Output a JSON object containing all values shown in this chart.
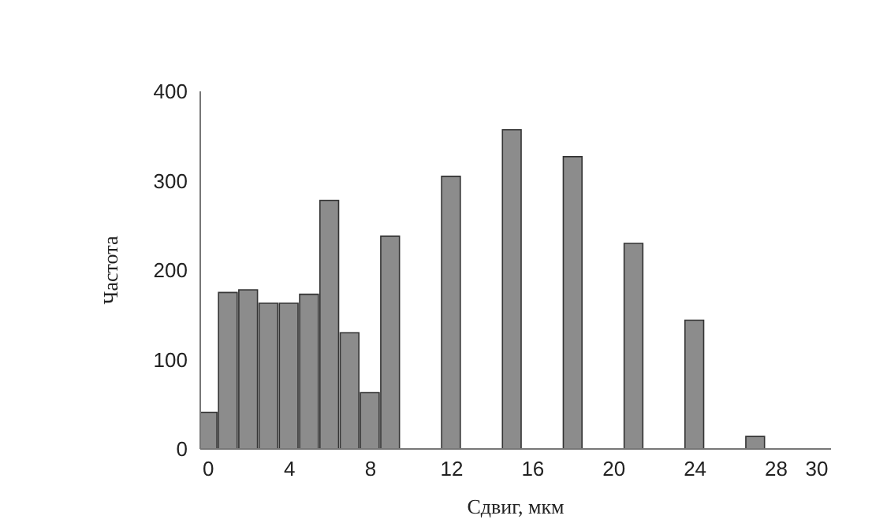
{
  "chart_data": {
    "type": "bar",
    "xlabel": "Сдвиг, мкм",
    "ylabel": "Частота",
    "x": [
      0,
      1,
      2,
      3,
      4,
      5,
      6,
      7,
      8,
      9,
      12,
      15,
      18,
      21,
      24,
      27
    ],
    "values": [
      41,
      175,
      178,
      163,
      163,
      173,
      278,
      130,
      63,
      238,
      305,
      357,
      327,
      230,
      144,
      14
    ],
    "color": "#8c8c8c",
    "xlim": [
      -0.4,
      30.7
    ],
    "xticks": [
      0,
      4,
      8,
      12,
      16,
      20,
      24,
      28,
      30
    ],
    "ylim": [
      0,
      400
    ],
    "yticks": [
      0,
      100,
      200,
      300,
      400
    ],
    "grid": false,
    "legend": false
  }
}
